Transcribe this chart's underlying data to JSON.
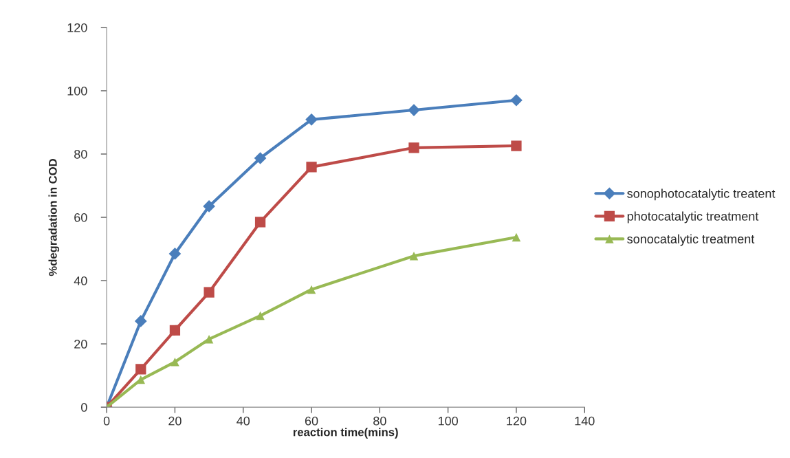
{
  "chart_data": {
    "type": "line",
    "xlabel": "reaction time(mins)",
    "ylabel": "%degradation in COD",
    "x": [
      0,
      10,
      20,
      30,
      45,
      60,
      90,
      120
    ],
    "series": [
      {
        "name": "sonophotocatalytic treatent",
        "color": "#4a7ebb",
        "marker": "diamond",
        "values": [
          0,
          27.2,
          48.5,
          63.5,
          78.7,
          90.9,
          93.9,
          97
        ]
      },
      {
        "name": "photocatalytic treatment",
        "color": "#be4b48",
        "marker": "square",
        "values": [
          0,
          12,
          24.3,
          36.3,
          58.5,
          75.9,
          82,
          82.6
        ]
      },
      {
        "name": "sonocatalytic treatment",
        "color": "#98b954",
        "marker": "triangle",
        "values": [
          0,
          8.7,
          14.3,
          21.5,
          28.9,
          37.2,
          47.8,
          53.7
        ]
      }
    ],
    "xlim": [
      0,
      140
    ],
    "xticks": [
      0,
      20,
      40,
      60,
      80,
      100,
      120,
      140
    ],
    "ylim": [
      0,
      120
    ],
    "yticks": [
      0,
      20,
      40,
      60,
      80,
      100,
      120
    ],
    "grid": false,
    "legend": "right"
  }
}
